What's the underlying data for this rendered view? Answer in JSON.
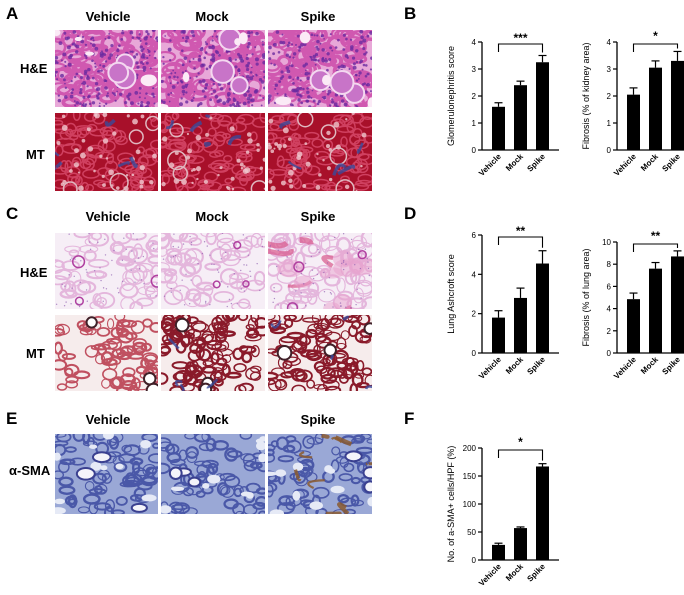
{
  "panels": {
    "A": {
      "letter": "A",
      "columns": [
        "Vehicle",
        "Mock",
        "Spike"
      ],
      "rows": [
        "H&E",
        "MT"
      ]
    },
    "B": {
      "letter": "B"
    },
    "C": {
      "letter": "C",
      "columns": [
        "Vehicle",
        "Mock",
        "Spike"
      ],
      "rows": [
        "H&E",
        "MT"
      ]
    },
    "D": {
      "letter": "D"
    },
    "E": {
      "letter": "E",
      "columns": [
        "Vehicle",
        "Mock",
        "Spike"
      ],
      "rows": [
        "α-SMA"
      ]
    },
    "F": {
      "letter": "F"
    }
  },
  "chart_data": [
    {
      "id": "b1",
      "type": "bar",
      "categories": [
        "Vehicle",
        "Mock",
        "Spike"
      ],
      "values": [
        1.6,
        2.4,
        3.25
      ],
      "errors": [
        0.15,
        0.15,
        0.25
      ],
      "ylabel": "Glomerulonephritis score",
      "ylim": [
        0,
        4
      ],
      "yticks": [
        "0",
        "1",
        "2",
        "3",
        "4"
      ],
      "significance": "***"
    },
    {
      "id": "b2",
      "type": "bar",
      "categories": [
        "Vehicle",
        "Mock",
        "Spike"
      ],
      "values": [
        2.05,
        3.05,
        3.3
      ],
      "errors": [
        0.25,
        0.25,
        0.35
      ],
      "ylabel": "Fibrosis (% of kidney area)",
      "ylim": [
        0,
        4
      ],
      "yticks": [
        "0",
        "1",
        "2",
        "3",
        "4"
      ],
      "significance": "*"
    },
    {
      "id": "d1",
      "type": "bar",
      "categories": [
        "Vehicle",
        "Mock",
        "Spike"
      ],
      "values": [
        1.8,
        2.8,
        4.55
      ],
      "errors": [
        0.35,
        0.5,
        0.65
      ],
      "ylabel": "Lung Ashcroft score",
      "ylim": [
        0,
        6
      ],
      "yticks": [
        "0",
        "2",
        "4",
        "6"
      ],
      "significance": "**"
    },
    {
      "id": "d2",
      "type": "bar",
      "categories": [
        "Vehicle",
        "Mock",
        "Spike"
      ],
      "values": [
        4.85,
        7.6,
        8.7
      ],
      "errors": [
        0.55,
        0.55,
        0.5
      ],
      "ylabel": "Fibrosis (% of lung area)",
      "ylim": [
        0,
        10
      ],
      "yticks": [
        "0",
        "2",
        "4",
        "6",
        "8",
        "10"
      ],
      "significance": "**"
    },
    {
      "id": "f1",
      "type": "bar",
      "categories": [
        "Vehicle",
        "Mock",
        "Spike"
      ],
      "values": [
        27,
        57,
        167
      ],
      "errors": [
        3,
        2,
        5
      ],
      "ylabel": "No. of a-SMA+ cells/HPF (%)",
      "ylim": [
        0,
        200
      ],
      "yticks": [
        "0",
        "50",
        "100",
        "150",
        "200"
      ],
      "significance": "*"
    }
  ],
  "micrographs": [
    {
      "id": "a11",
      "style": "he-kidney",
      "seed": 11
    },
    {
      "id": "a12",
      "style": "he-kidney",
      "seed": 12
    },
    {
      "id": "a13",
      "style": "he-kidney",
      "seed": 13
    },
    {
      "id": "a21",
      "style": "mt-kidney",
      "seed": 21
    },
    {
      "id": "a22",
      "style": "mt-kidney",
      "seed": 22
    },
    {
      "id": "a23",
      "style": "mt-kidney",
      "seed": 23
    },
    {
      "id": "c11",
      "style": "he-lung",
      "seed": 31
    },
    {
      "id": "c12",
      "style": "he-lung",
      "seed": 32
    },
    {
      "id": "c13",
      "style": "he-lung-spike",
      "seed": 33
    },
    {
      "id": "c21",
      "style": "mt-lung",
      "seed": 41
    },
    {
      "id": "c22",
      "style": "mt-lung-dense",
      "seed": 42
    },
    {
      "id": "c23",
      "style": "mt-lung-dense",
      "seed": 43
    },
    {
      "id": "e11",
      "style": "sma",
      "seed": 51
    },
    {
      "id": "e12",
      "style": "sma",
      "seed": 52
    },
    {
      "id": "e13",
      "style": "sma-spike",
      "seed": 53
    }
  ],
  "colors": {
    "bar": "#000000",
    "he_bg": "#e8a8d8",
    "he_tissue": "#d058b0",
    "he_nuclei": "#6a2aa0",
    "mt_bg": "#a8102a",
    "mt_blue": "#3a4a9a",
    "lung_he_bg": "#f6eef6",
    "lung_he_tissue": "#e4b6dc",
    "sma_bg": "#9aa8d6",
    "sma_brown": "#8a5a30"
  }
}
